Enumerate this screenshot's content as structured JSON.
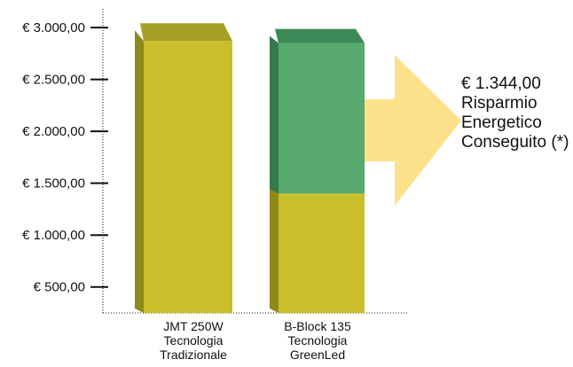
{
  "chart_data": {
    "type": "bar",
    "title": "",
    "xlabel": "",
    "ylabel": "",
    "ylim": [
      250,
      3180
    ],
    "yticks": [
      500,
      1000,
      1500,
      2000,
      2500,
      3000
    ],
    "ytick_labels": [
      "€ 500,00",
      "€ 1.000,00",
      "€ 1.500,00",
      "€ 2.000,00",
      "€ 2.500,00",
      "€ 3.000,00"
    ],
    "categories": [
      [
        "JMT 250W",
        "Tecnologia",
        "Tradizionale"
      ],
      [
        "B-Block 135",
        "Tecnologia",
        "GreenLed"
      ]
    ],
    "bars": [
      {
        "total": 2620,
        "segments": [
          {
            "value": 2620,
            "color": "#c8bf2a"
          }
        ]
      },
      {
        "total": 2600,
        "segments": [
          {
            "value": 1150,
            "color": "#c8bf2a"
          },
          {
            "value": 1450,
            "color": "#57a96e"
          }
        ]
      }
    ],
    "annotation": {
      "lines": [
        "€ 1.344,00",
        "Risparmio",
        "Energetico",
        "Conseguito (*)"
      ],
      "arrow_color": "#fde08a"
    },
    "colors": {
      "bar_yellow": "#c8bf2a",
      "bar_yellow_top": "#a6a024",
      "bar_yellow_side": "#8f8a1c",
      "bar_green": "#57a96e",
      "bar_green_top": "#3d8a56",
      "bar_green_side": "#357a4b",
      "axis": "#111111"
    }
  }
}
